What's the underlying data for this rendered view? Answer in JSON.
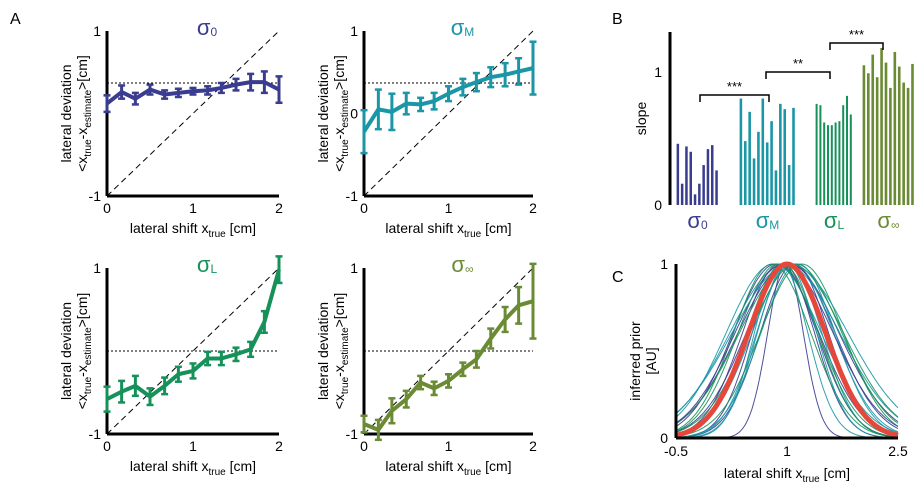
{
  "panel_letters": {
    "a": "A",
    "b": "B",
    "c": "C"
  },
  "colors": {
    "s0": "#3a3d8f",
    "sM": "#1a96a6",
    "sL": "#17915a",
    "sInf": "#6b8a34",
    "prior_mean": "#e5483a"
  },
  "chart_data": [
    {
      "id": "A1",
      "type": "line",
      "title": "σ0",
      "title_main": "σ",
      "title_sub": "0",
      "xlabel_main": "lateral shift x",
      "xlabel_sub": "true",
      "xlabel_unit": " [cm]",
      "ylabel_line1": "lateral deviation",
      "ylabel_line2_main": "<x",
      "ylabel_line2_sub1": "true",
      "ylabel_line2_mid": "-x",
      "ylabel_line2_sub2": "estimate",
      "ylabel_line2_end": ">[cm]",
      "xlim": [
        0,
        2
      ],
      "ylim": [
        -1,
        1
      ],
      "xticks": [
        "0",
        "1",
        "2"
      ],
      "yticks": [
        "-1",
        "1"
      ],
      "hline": 0.37,
      "x": [
        0,
        0.17,
        0.33,
        0.5,
        0.67,
        0.83,
        1.0,
        1.17,
        1.33,
        1.5,
        1.67,
        1.83,
        2.0
      ],
      "y": [
        0.12,
        0.26,
        0.18,
        0.29,
        0.23,
        0.25,
        0.27,
        0.28,
        0.31,
        0.35,
        0.38,
        0.38,
        0.29
      ],
      "err": [
        0.1,
        0.08,
        0.07,
        0.06,
        0.05,
        0.05,
        0.04,
        0.05,
        0.06,
        0.07,
        0.1,
        0.13,
        0.16
      ]
    },
    {
      "id": "A2",
      "type": "line",
      "title": "σM",
      "title_main": "σ",
      "title_sub": "M",
      "xlabel_main": "lateral shift x",
      "xlabel_sub": "true",
      "xlabel_unit": " [cm]",
      "ylabel_line1": "lateral deviation",
      "ylabel_line2_main": "<x",
      "ylabel_line2_sub1": "true",
      "ylabel_line2_mid": "-x",
      "ylabel_line2_sub2": "estimate",
      "ylabel_line2_end": ">[cm]",
      "xlim": [
        0,
        2
      ],
      "ylim": [
        -1,
        1
      ],
      "xticks": [
        "0",
        "1",
        "2"
      ],
      "yticks": [
        "-1",
        "0",
        "1"
      ],
      "hline": 0.37,
      "x": [
        0,
        0.17,
        0.33,
        0.5,
        0.67,
        0.83,
        1.0,
        1.17,
        1.33,
        1.5,
        1.67,
        1.83,
        2.0
      ],
      "y": [
        -0.22,
        0.05,
        0.02,
        0.12,
        0.11,
        0.15,
        0.24,
        0.32,
        0.38,
        0.44,
        0.47,
        0.51,
        0.55
      ],
      "err": [
        0.26,
        0.24,
        0.22,
        0.13,
        0.08,
        0.1,
        0.09,
        0.1,
        0.11,
        0.12,
        0.14,
        0.16,
        0.32
      ]
    },
    {
      "id": "A3",
      "type": "line",
      "title": "σL",
      "title_main": "σ",
      "title_sub": "L",
      "xlabel_main": "lateral shift x",
      "xlabel_sub": "true",
      "xlabel_unit": " [cm]",
      "ylabel_line1": "lateral deviation",
      "ylabel_line2_main": "<x",
      "ylabel_line2_sub1": "true",
      "ylabel_line2_mid": "-x",
      "ylabel_line2_sub2": "estimate",
      "ylabel_line2_end": ">[cm]",
      "xlim": [
        0,
        2
      ],
      "ylim": [
        -1,
        1
      ],
      "xticks": [
        "0",
        "1",
        "2"
      ],
      "yticks": [
        "-1",
        "1"
      ],
      "hline": 0.0,
      "x": [
        0,
        0.17,
        0.33,
        0.5,
        0.67,
        0.83,
        1.0,
        1.17,
        1.33,
        1.5,
        1.67,
        1.83,
        2.0
      ],
      "y": [
        -0.58,
        -0.49,
        -0.42,
        -0.55,
        -0.42,
        -0.28,
        -0.24,
        -0.09,
        -0.09,
        -0.04,
        0.02,
        0.35,
        0.98
      ],
      "err": [
        0.15,
        0.13,
        0.12,
        0.1,
        0.1,
        0.09,
        0.09,
        0.08,
        0.08,
        0.08,
        0.09,
        0.13,
        0.16
      ]
    },
    {
      "id": "A4",
      "type": "line",
      "title": "σ∞",
      "title_main": "σ",
      "title_sub": "∞",
      "xlabel_main": "lateral shift x",
      "xlabel_sub": "true",
      "xlabel_unit": " [cm]",
      "ylabel_line1": "lateral deviation",
      "ylabel_line2_main": "<x",
      "ylabel_line2_sub1": "true",
      "ylabel_line2_mid": "-x",
      "ylabel_line2_sub2": "estimate",
      "ylabel_line2_end": ">[cm]",
      "xlim": [
        0,
        2
      ],
      "ylim": [
        -1,
        1
      ],
      "xticks": [
        "0",
        "1",
        "2"
      ],
      "yticks": [
        "-1",
        "1"
      ],
      "hline": 0.0,
      "x": [
        0,
        0.17,
        0.33,
        0.5,
        0.67,
        0.83,
        1.0,
        1.17,
        1.33,
        1.5,
        1.67,
        1.83,
        2.0
      ],
      "y": [
        -0.88,
        -0.95,
        -0.72,
        -0.58,
        -0.38,
        -0.45,
        -0.36,
        -0.22,
        -0.1,
        0.15,
        0.38,
        0.55,
        0.6
      ],
      "err": [
        0.1,
        0.12,
        0.15,
        0.1,
        0.08,
        0.08,
        0.08,
        0.08,
        0.1,
        0.12,
        0.15,
        0.22,
        0.45
      ]
    },
    {
      "id": "B",
      "type": "bar",
      "ylabel": "slope",
      "ylim": [
        0,
        1.3
      ],
      "yticks": [
        "0",
        "1"
      ],
      "groups": [
        {
          "name": "σ0",
          "main": "σ",
          "sub": "0",
          "values": [
            0.46,
            0.16,
            0.44,
            0.4,
            0.08,
            0.16,
            0.3,
            0.42,
            0.45,
            0.26
          ]
        },
        {
          "name": "σM",
          "main": "σ",
          "sub": "M",
          "values": [
            0.8,
            0.48,
            0.7,
            0.35,
            0.55,
            0.8,
            0.47,
            0.63,
            0.26,
            0.76,
            0.72,
            0.3,
            0.73
          ]
        },
        {
          "name": "σL",
          "main": "σ",
          "sub": "L",
          "values": [
            0.76,
            0.75,
            0.62,
            0.6,
            0.6,
            0.62,
            0.63,
            0.75,
            0.82,
            0.68
          ]
        },
        {
          "name": "σ∞",
          "main": "σ",
          "sub": "∞",
          "values": [
            1.05,
            0.99,
            1.13,
            0.96,
            1.18,
            1.07,
            0.88,
            1.15,
            1.04,
            0.92,
            0.88,
            1.06
          ]
        }
      ],
      "significance": [
        {
          "from": 0,
          "to": 1,
          "label": "***"
        },
        {
          "from": 1,
          "to": 2,
          "label": "**"
        },
        {
          "from": 2,
          "to": 3,
          "label": "***"
        }
      ]
    },
    {
      "id": "C",
      "type": "line",
      "xlabel_main": "lateral shift x",
      "xlabel_sub": "true",
      "xlabel_unit": " [cm]",
      "ylabel_line1": "inferred prior",
      "ylabel_line2": "[AU]",
      "xlim": [
        -0.5,
        2.5
      ],
      "ylim": [
        0,
        1
      ],
      "xticks": [
        "-0.5",
        "1",
        "2.5"
      ],
      "xtick_values": [
        -0.5,
        1,
        2.5
      ],
      "yticks": [
        "0",
        "1"
      ],
      "mean_curve": {
        "mu": 1.0,
        "sigma": 0.52
      },
      "individual_curves": [
        {
          "mu": 0.95,
          "sigma": 0.42,
          "group": "s0"
        },
        {
          "mu": 1.05,
          "sigma": 0.6,
          "group": "s0"
        },
        {
          "mu": 0.9,
          "sigma": 0.5,
          "group": "s0"
        },
        {
          "mu": 1.1,
          "sigma": 0.46,
          "group": "s0"
        },
        {
          "mu": 0.98,
          "sigma": 0.24,
          "group": "s0"
        },
        {
          "mu": 0.85,
          "sigma": 0.58,
          "group": "s0"
        },
        {
          "mu": 1.02,
          "sigma": 0.68,
          "group": "s0"
        },
        {
          "mu": 0.92,
          "sigma": 0.36,
          "group": "sM"
        },
        {
          "mu": 1.08,
          "sigma": 0.55,
          "group": "sM"
        },
        {
          "mu": 0.82,
          "sigma": 0.64,
          "group": "sM"
        },
        {
          "mu": 1.15,
          "sigma": 0.5,
          "group": "sM"
        },
        {
          "mu": 0.97,
          "sigma": 0.74,
          "group": "sM"
        },
        {
          "mu": 1.03,
          "sigma": 0.44,
          "group": "sM"
        },
        {
          "mu": 0.88,
          "sigma": 0.54,
          "group": "sL"
        },
        {
          "mu": 1.12,
          "sigma": 0.62,
          "group": "sL"
        },
        {
          "mu": 0.94,
          "sigma": 0.48,
          "group": "sL"
        },
        {
          "mu": 1.06,
          "sigma": 0.7,
          "group": "sL"
        },
        {
          "mu": 0.8,
          "sigma": 0.52,
          "group": "sL"
        },
        {
          "mu": 1.2,
          "sigma": 0.56,
          "group": "sL"
        },
        {
          "mu": 1.0,
          "sigma": 0.4,
          "group": "sM"
        },
        {
          "mu": 0.96,
          "sigma": 0.66,
          "group": "s0"
        },
        {
          "mu": 1.04,
          "sigma": 0.78,
          "group": "sM"
        }
      ]
    }
  ]
}
